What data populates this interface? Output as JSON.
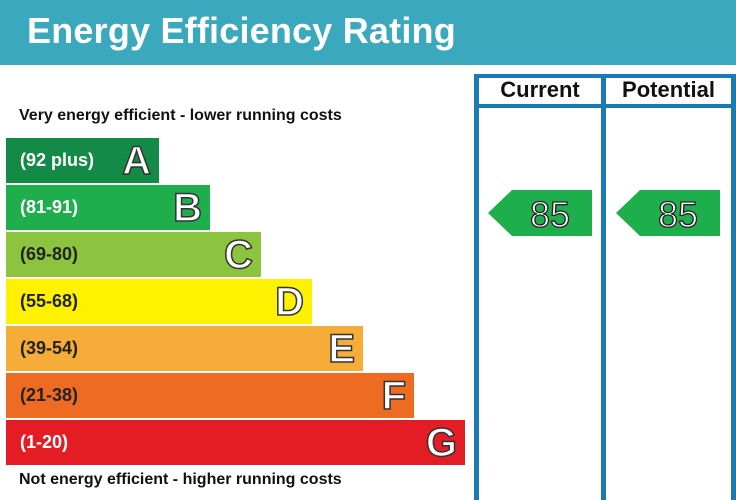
{
  "title": "Energy Efficiency Rating",
  "top_caption": "Very energy efficient - lower running costs",
  "bottom_caption": "Not energy efficient - higher running costs",
  "columns": {
    "current": "Current",
    "potential": "Potential"
  },
  "chart_data": {
    "type": "bar",
    "title": "Energy Efficiency Rating",
    "categories": [
      "A",
      "B",
      "C",
      "D",
      "E",
      "F",
      "G"
    ],
    "bands": [
      {
        "letter": "A",
        "range": "(92 plus)",
        "color": "#138a46",
        "text_color": "#ffffff"
      },
      {
        "letter": "B",
        "range": "(81-91)",
        "color": "#1fae4c",
        "text_color": "#ffffff"
      },
      {
        "letter": "C",
        "range": "(69-80)",
        "color": "#8cc43f",
        "text_color": "#222222"
      },
      {
        "letter": "D",
        "range": "(55-68)",
        "color": "#fef200",
        "text_color": "#222222"
      },
      {
        "letter": "E",
        "range": "(39-54)",
        "color": "#f6ac38",
        "text_color": "#222222"
      },
      {
        "letter": "F",
        "range": "(21-38)",
        "color": "#ee6b22",
        "text_color": "#222222"
      },
      {
        "letter": "G",
        "range": "(1-20)",
        "color": "#e31d23",
        "text_color": "#ffffff"
      }
    ],
    "current_rating": 85,
    "potential_rating": 85,
    "rating_color": "#1fae4c"
  }
}
